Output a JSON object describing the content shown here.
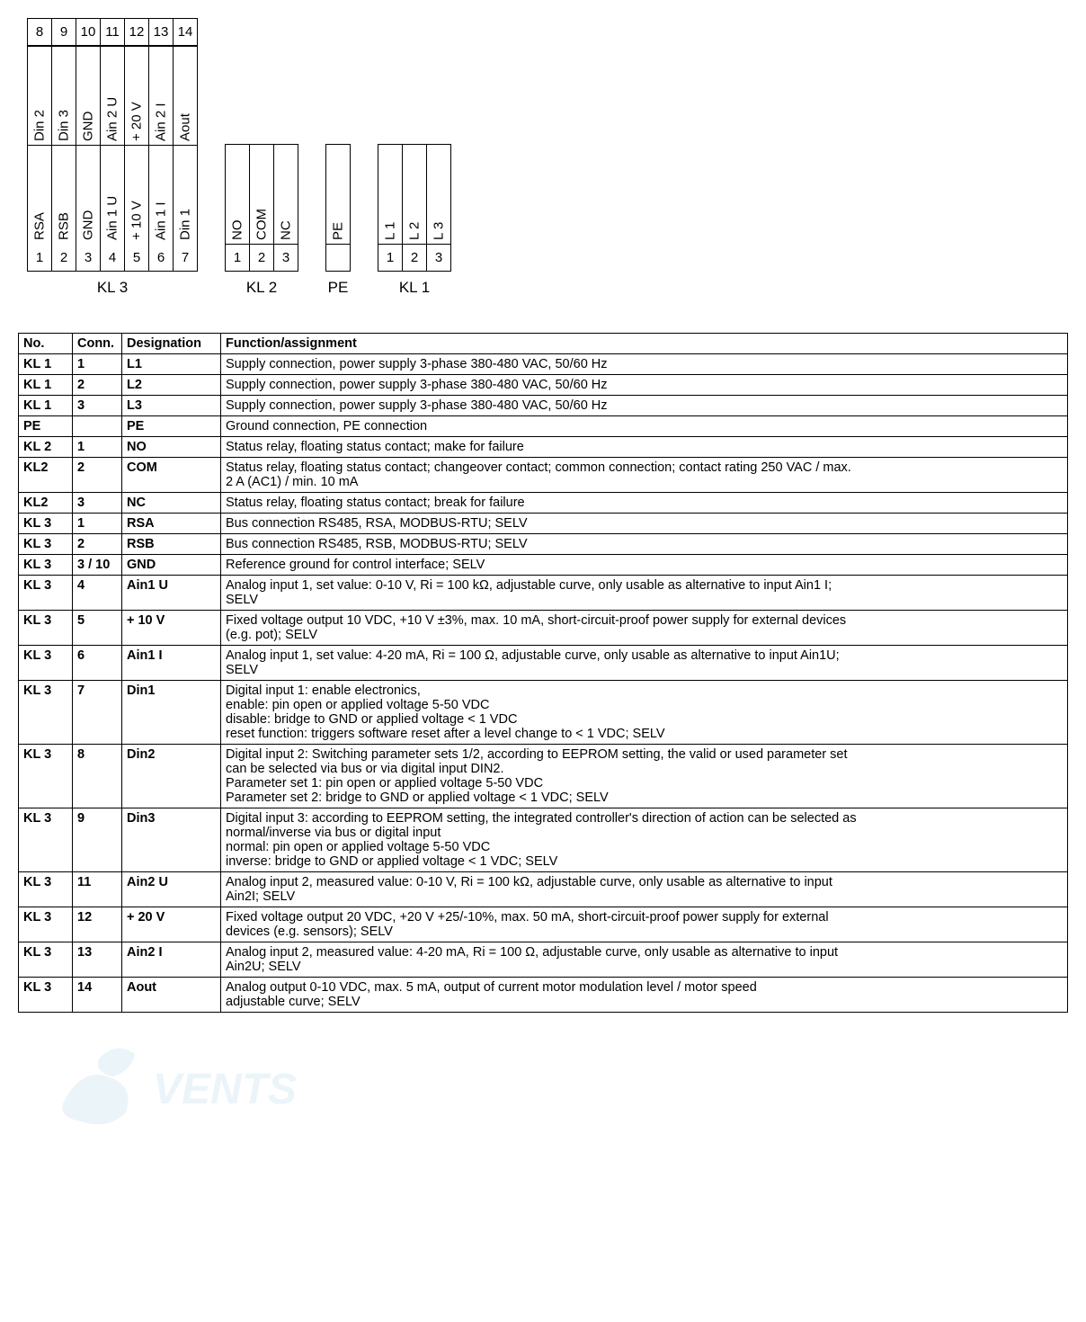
{
  "diagram": {
    "kl3": {
      "caption": "KL 3",
      "top_row": [
        {
          "num": "8",
          "label": "Din 2"
        },
        {
          "num": "9",
          "label": "Din 3"
        },
        {
          "num": "10",
          "label": "GND"
        },
        {
          "num": "11",
          "label": "Ain 2 U"
        },
        {
          "num": "12",
          "label": "+ 20 V"
        },
        {
          "num": "13",
          "label": "Ain 2 I"
        },
        {
          "num": "14",
          "label": "Aout"
        }
      ],
      "bottom_row": [
        {
          "num": "1",
          "label": "RSA"
        },
        {
          "num": "2",
          "label": "RSB"
        },
        {
          "num": "3",
          "label": "GND"
        },
        {
          "num": "4",
          "label": "Ain 1 U"
        },
        {
          "num": "5",
          "label": "+ 10 V"
        },
        {
          "num": "6",
          "label": "Ain 1 I"
        },
        {
          "num": "7",
          "label": "Din 1"
        }
      ]
    },
    "kl2": {
      "caption": "KL 2",
      "pins": [
        {
          "num": "1",
          "label": "NO"
        },
        {
          "num": "2",
          "label": "COM"
        },
        {
          "num": "3",
          "label": "NC"
        }
      ]
    },
    "pe": {
      "caption": "PE",
      "pins": [
        {
          "num": "",
          "label": "PE"
        }
      ]
    },
    "kl1": {
      "caption": "KL 1",
      "pins": [
        {
          "num": "1",
          "label": "L 1"
        },
        {
          "num": "2",
          "label": "L 2"
        },
        {
          "num": "3",
          "label": "L 3"
        }
      ]
    }
  },
  "table": {
    "headers": [
      "No.",
      "Conn.",
      "Designation",
      "Function/assignment"
    ],
    "rows": [
      {
        "no": "KL 1",
        "conn": "1",
        "desig": "L1",
        "func": "Supply connection, power supply 3-phase 380-480 VAC, 50/60 Hz"
      },
      {
        "no": "KL 1",
        "conn": "2",
        "desig": "L2",
        "func": "Supply connection, power supply 3-phase 380-480 VAC, 50/60 Hz"
      },
      {
        "no": "KL 1",
        "conn": "3",
        "desig": "L3",
        "func": "Supply connection, power supply 3-phase 380-480 VAC, 50/60 Hz"
      },
      {
        "no": "PE",
        "conn": "",
        "desig": "PE",
        "func": "Ground connection, PE connection"
      },
      {
        "no": "KL 2",
        "conn": "1",
        "desig": "NO",
        "func": "Status relay, floating status contact; make for failure"
      },
      {
        "no": "KL2",
        "conn": "2",
        "desig": "COM",
        "func": "Status relay, floating status contact; changeover contact; common connection; contact rating 250 VAC / max.\n2 A (AC1) / min. 10 mA"
      },
      {
        "no": "KL2",
        "conn": "3",
        "desig": "NC",
        "func": "Status relay, floating status contact; break for failure"
      },
      {
        "no": "KL 3",
        "conn": "1",
        "desig": "RSA",
        "func": "Bus connection RS485, RSA, MODBUS-RTU; SELV"
      },
      {
        "no": "KL 3",
        "conn": "2",
        "desig": "RSB",
        "func": "Bus connection RS485, RSB, MODBUS-RTU; SELV"
      },
      {
        "no": "KL 3",
        "conn": "3 / 10",
        "desig": "GND",
        "func": "Reference ground for control interface; SELV"
      },
      {
        "no": "KL 3",
        "conn": "4",
        "desig": "Ain1 U",
        "func": "Analog input 1, set value: 0-10 V, Ri = 100 kΩ, adjustable curve, only usable as alternative to input Ain1 I;\nSELV"
      },
      {
        "no": "KL 3",
        "conn": "5",
        "desig": "+ 10 V",
        "func": "Fixed voltage output 10 VDC, +10 V ±3%, max. 10 mA, short-circuit-proof power supply for external devices\n(e.g. pot); SELV"
      },
      {
        "no": "KL 3",
        "conn": "6",
        "desig": "Ain1 I",
        "func": "Analog input 1, set value: 4-20 mA, Ri = 100 Ω, adjustable curve, only usable as alternative to input Ain1U;\nSELV"
      },
      {
        "no": "KL 3",
        "conn": "7",
        "desig": "Din1",
        "func": "Digital input 1: enable electronics,\nenable: pin open or applied voltage 5-50 VDC\ndisable: bridge to GND or applied voltage < 1 VDC\nreset function: triggers software reset after a level change to < 1 VDC; SELV"
      },
      {
        "no": "KL 3",
        "conn": "8",
        "desig": "Din2",
        "func": "Digital input 2: Switching parameter sets 1/2, according to EEPROM setting, the valid or used parameter set\ncan be selected via bus or via digital input DIN2.\nParameter set 1: pin open or applied voltage 5-50 VDC\nParameter set 2: bridge to GND or applied voltage < 1 VDC; SELV"
      },
      {
        "no": "KL 3",
        "conn": "9",
        "desig": "Din3",
        "func": "Digital input 3: according to EEPROM setting, the integrated controller's direction of action can be selected as\nnormal/inverse via bus or digital input\nnormal: pin open or applied voltage 5-50 VDC\ninverse: bridge to GND or applied voltage < 1 VDC; SELV"
      },
      {
        "no": "KL 3",
        "conn": "11",
        "desig": "Ain2 U",
        "func": "Analog input 2, measured value: 0-10 V, Ri = 100 kΩ, adjustable curve, only usable as alternative to input\nAin2I; SELV"
      },
      {
        "no": "KL 3",
        "conn": "12",
        "desig": "+ 20 V",
        "func": "Fixed voltage output 20 VDC, +20 V +25/-10%, max. 50 mA, short-circuit-proof power supply for external\ndevices (e.g. sensors); SELV"
      },
      {
        "no": "KL 3",
        "conn": "13",
        "desig": "Ain2 I",
        "func": "Analog input 2, measured value: 4-20 mA, Ri = 100 Ω, adjustable curve, only usable as alternative to input\nAin2U; SELV"
      },
      {
        "no": "KL 3",
        "conn": "14",
        "desig": "Aout",
        "func": "Analog output 0-10 VDC, max. 5 mA, output of current motor modulation level / motor speed\nadjustable curve; SELV"
      }
    ]
  },
  "style": {
    "border_color": "#000000",
    "background": "#ffffff",
    "font_family": "Arial",
    "table_font_size": 14.5,
    "diagram_font_size": 15
  }
}
